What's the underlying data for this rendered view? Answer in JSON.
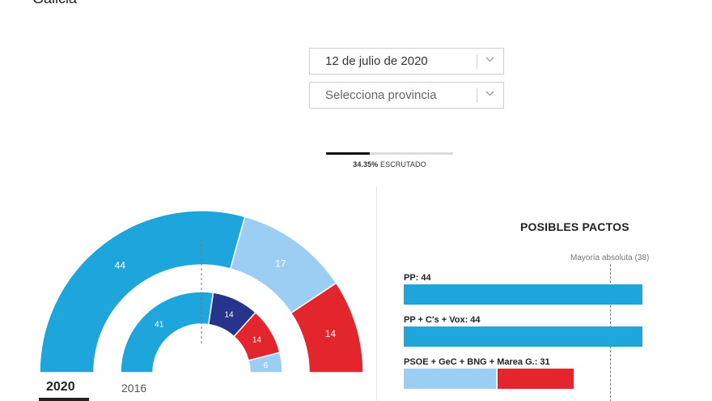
{
  "page": {
    "title_partial": "Galicia"
  },
  "selects": {
    "date": {
      "value": "12 de julio de 2020"
    },
    "province": {
      "placeholder": "Selecciona provincia"
    }
  },
  "progress": {
    "fraction": 0.3435,
    "percent_label": "34.35%",
    "label_suffix": "ESCRUTADO"
  },
  "hemicycle": {
    "years": {
      "active": "2020",
      "inactive": "2016"
    },
    "outer_2020": [
      {
        "value": 44,
        "label": "44",
        "color": "#1ea5dc"
      },
      {
        "value": 17,
        "label": "17",
        "color": "#9ccef4"
      },
      {
        "value": 14,
        "label": "14",
        "color": "#e3262e"
      }
    ],
    "inner_2016": [
      {
        "value": 41,
        "label": "41",
        "color": "#1ea5dc"
      },
      {
        "value": 14,
        "label": "14",
        "color": "#27348b"
      },
      {
        "value": 14,
        "label": "14",
        "color": "#e3262e"
      },
      {
        "value": 6,
        "label": "6",
        "color": "#9ccef4"
      }
    ]
  },
  "pacts": {
    "title": "POSIBLES PACTOS",
    "majority_label": "Mayoría absoluta (38)",
    "majority": 38,
    "total_seats": 75,
    "items": [
      {
        "label": "PP: 44",
        "segments": [
          {
            "value": 44,
            "color": "#1ea5dc"
          }
        ]
      },
      {
        "label": "PP + C's + Vox: 44",
        "segments": [
          {
            "value": 44,
            "color": "#1ea5dc"
          }
        ]
      },
      {
        "label": "PSOE + GeC + BNG + Marea G.: 31",
        "segments": [
          {
            "value": 17,
            "color": "#9ccef4"
          },
          {
            "value": 14,
            "color": "#e3262e"
          }
        ]
      }
    ]
  }
}
